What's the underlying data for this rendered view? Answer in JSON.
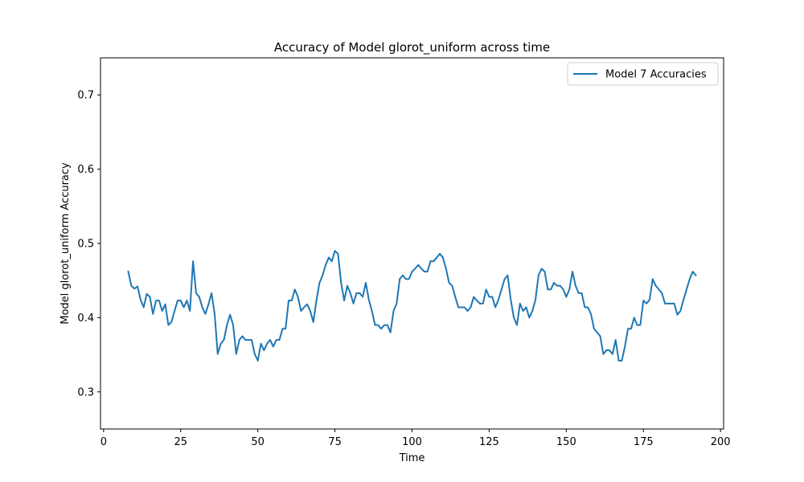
{
  "chart_data": {
    "type": "line",
    "title": "Accuracy of Model glorot_uniform across time",
    "xlabel": "Time",
    "ylabel": "Model glorot_uniform Accuracy",
    "xlim": [
      -1,
      201
    ],
    "ylim": [
      0.25,
      0.75
    ],
    "xticks": [
      0,
      25,
      50,
      75,
      100,
      125,
      150,
      175,
      200
    ],
    "yticks": [
      0.3,
      0.4,
      0.5,
      0.6,
      0.7
    ],
    "ytick_labels": [
      "0.3",
      "0.4",
      "0.5",
      "0.6",
      "0.7"
    ],
    "grid": false,
    "legend_position": "top-right",
    "series": [
      {
        "name": "Model 7 Accuracies",
        "color": "#1f77b4",
        "x_start": 8,
        "x_step": 1,
        "values": [
          0.462,
          0.443,
          0.439,
          0.442,
          0.424,
          0.414,
          0.432,
          0.428,
          0.405,
          0.423,
          0.423,
          0.409,
          0.418,
          0.39,
          0.394,
          0.409,
          0.423,
          0.423,
          0.414,
          0.423,
          0.409,
          0.476,
          0.433,
          0.428,
          0.414,
          0.405,
          0.418,
          0.433,
          0.405,
          0.351,
          0.365,
          0.37,
          0.39,
          0.404,
          0.39,
          0.351,
          0.37,
          0.375,
          0.37,
          0.37,
          0.37,
          0.351,
          0.342,
          0.365,
          0.356,
          0.365,
          0.37,
          0.361,
          0.37,
          0.37,
          0.385,
          0.385,
          0.423,
          0.423,
          0.438,
          0.428,
          0.409,
          0.414,
          0.418,
          0.409,
          0.394,
          0.423,
          0.447,
          0.457,
          0.471,
          0.481,
          0.476,
          0.49,
          0.486,
          0.447,
          0.423,
          0.443,
          0.433,
          0.419,
          0.433,
          0.433,
          0.428,
          0.447,
          0.424,
          0.409,
          0.39,
          0.39,
          0.385,
          0.39,
          0.39,
          0.38,
          0.409,
          0.419,
          0.452,
          0.457,
          0.452,
          0.452,
          0.462,
          0.466,
          0.471,
          0.466,
          0.462,
          0.462,
          0.476,
          0.476,
          0.481,
          0.486,
          0.481,
          0.466,
          0.447,
          0.443,
          0.428,
          0.414,
          0.414,
          0.414,
          0.409,
          0.414,
          0.428,
          0.423,
          0.419,
          0.419,
          0.438,
          0.428,
          0.428,
          0.414,
          0.424,
          0.438,
          0.452,
          0.457,
          0.424,
          0.4,
          0.39,
          0.419,
          0.409,
          0.414,
          0.4,
          0.409,
          0.424,
          0.457,
          0.466,
          0.462,
          0.438,
          0.438,
          0.447,
          0.443,
          0.443,
          0.438,
          0.428,
          0.438,
          0.462,
          0.443,
          0.433,
          0.433,
          0.414,
          0.414,
          0.405,
          0.385,
          0.38,
          0.375,
          0.351,
          0.356,
          0.356,
          0.351,
          0.37,
          0.342,
          0.342,
          0.361,
          0.385,
          0.385,
          0.4,
          0.39,
          0.39,
          0.423,
          0.419,
          0.424,
          0.452,
          0.443,
          0.438,
          0.433,
          0.419,
          0.419,
          0.419,
          0.419,
          0.404,
          0.409,
          0.424,
          0.438,
          0.452,
          0.462,
          0.457
        ]
      }
    ]
  }
}
